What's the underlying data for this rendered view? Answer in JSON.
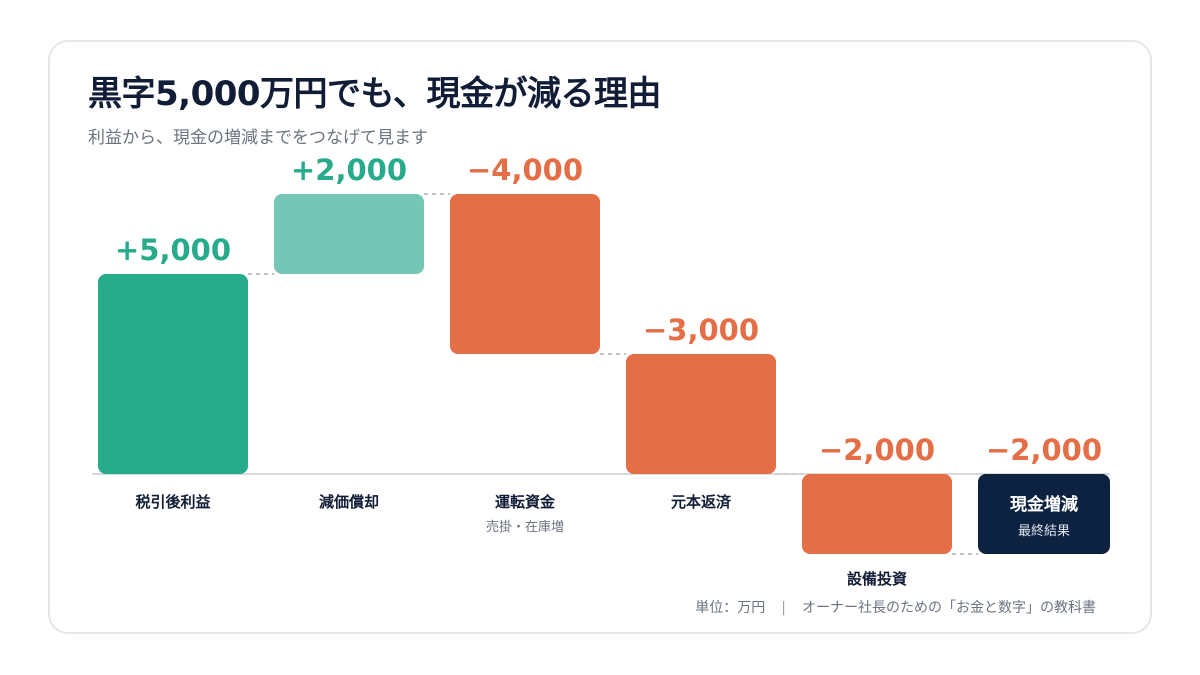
{
  "header": {
    "title": "黒字5,000万円でも、現金が減る理由",
    "subtitle": "利益から、現金の増減までをつなげて見ます"
  },
  "footer": {
    "unit": "単位：万円",
    "separator": "|",
    "source": "オーナー社長のための「お金と数字」の教科書"
  },
  "colors": {
    "positive": "#28ab8b",
    "positive_light": "#74c7b4",
    "negative": "#e46f47",
    "total": "#0d2240",
    "axis": "#c9ced4",
    "connector": "#a9b0b8",
    "label_dark": "#111d36",
    "label_muted": "#6b7480"
  },
  "chart_data": {
    "type": "waterfall",
    "ylim": [
      -2000,
      7000
    ],
    "steps": [
      {
        "label": "税引後利益",
        "sublabel": "",
        "value": 5000,
        "display": "+5,000",
        "kind": "positive"
      },
      {
        "label": "減価償却",
        "sublabel": "",
        "value": 2000,
        "display": "+2,000",
        "kind": "positive_light"
      },
      {
        "label": "運転資金",
        "sublabel": "売掛・在庫増",
        "value": -4000,
        "display": "−4,000",
        "kind": "negative"
      },
      {
        "label": "元本返済",
        "sublabel": "",
        "value": -3000,
        "display": "−3,000",
        "kind": "negative"
      },
      {
        "label": "設備投資",
        "sublabel": "",
        "value": -2000,
        "display": "−2,000",
        "kind": "negative"
      }
    ],
    "total": {
      "label": "現金増減",
      "sublabel": "最終結果",
      "value": -2000,
      "display": "−2,000",
      "kind": "total"
    }
  }
}
